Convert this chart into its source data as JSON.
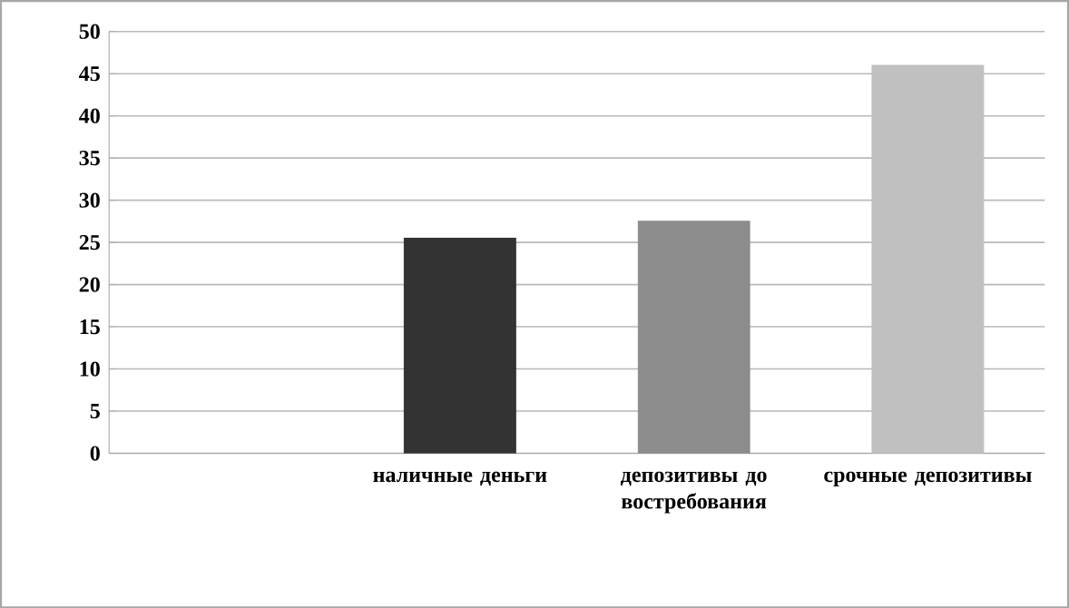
{
  "chart_data": {
    "type": "bar",
    "categories": [
      null,
      "наличные деньги",
      "депозитивы до востребования",
      "срочные депозитивы"
    ],
    "values": [
      null,
      25.5,
      27.5,
      46
    ],
    "colors": [
      "#333333",
      "#333333",
      "#8c8c8c",
      "#c0c0c0"
    ],
    "ylim": [
      0,
      50
    ],
    "yticks": [
      0,
      5,
      10,
      15,
      20,
      25,
      30,
      35,
      40,
      45,
      50
    ],
    "grid": "y"
  }
}
